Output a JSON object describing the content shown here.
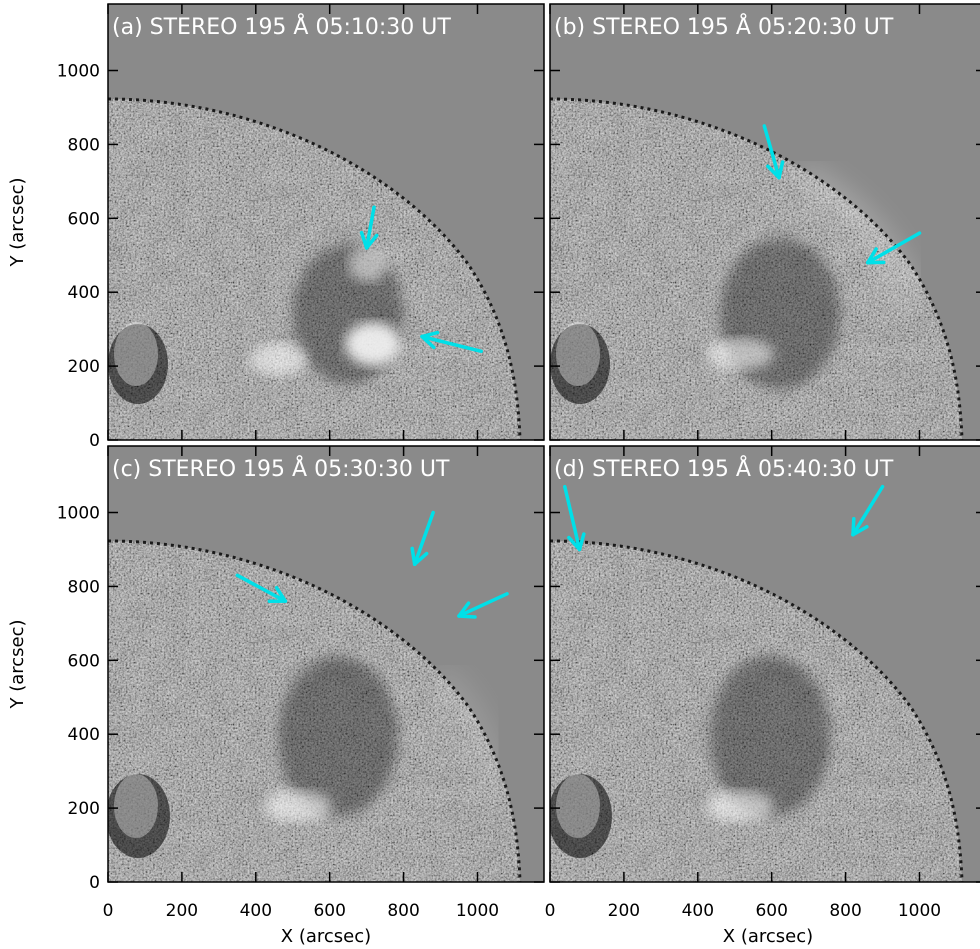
{
  "figure": {
    "panels": [
      {
        "id": "a",
        "title": "(a) STEREO 195 Å 05:10:30 UT",
        "arrows": [
          {
            "tail": [
              720,
              630
            ],
            "head": [
              700,
              520
            ]
          },
          {
            "tail": [
              1010,
              240
            ],
            "head": [
              850,
              280
            ]
          }
        ]
      },
      {
        "id": "b",
        "title": "(b) STEREO 195 Å 05:20:30 UT",
        "arrows": [
          {
            "tail": [
              580,
              850
            ],
            "head": [
              620,
              710
            ]
          },
          {
            "tail": [
              1000,
              560
            ],
            "head": [
              860,
              480
            ]
          }
        ]
      },
      {
        "id": "c",
        "title": "(c) STEREO 195 Å 05:30:30 UT",
        "arrows": [
          {
            "tail": [
              880,
              1000
            ],
            "head": [
              830,
              860
            ]
          },
          {
            "tail": [
              1080,
              780
            ],
            "head": [
              950,
              720
            ]
          },
          {
            "tail": [
              350,
              830
            ],
            "head": [
              480,
              760
            ]
          }
        ]
      },
      {
        "id": "d",
        "title": "(d) STEREO 195 Å 05:40:30 UT",
        "arrows": [
          {
            "tail": [
              40,
              1070
            ],
            "head": [
              80,
              900
            ]
          },
          {
            "tail": [
              900,
              1070
            ],
            "head": [
              820,
              940
            ]
          }
        ]
      }
    ],
    "x_ticks": [
      "0",
      "200",
      "400",
      "600",
      "800",
      "1000"
    ],
    "y_ticks": [
      "0",
      "200",
      "400",
      "600",
      "800",
      "1000"
    ],
    "x_label": "X (arcsec)",
    "y_label": "Y (arcsec)",
    "colors": {
      "arrow": "#00e0e8",
      "background": "#8a8a8a",
      "limb": "#1a1a1a",
      "disk": "#7c7c7c"
    },
    "axis_range": {
      "x": [
        0,
        1180
      ],
      "y": [
        0,
        1180
      ]
    }
  }
}
